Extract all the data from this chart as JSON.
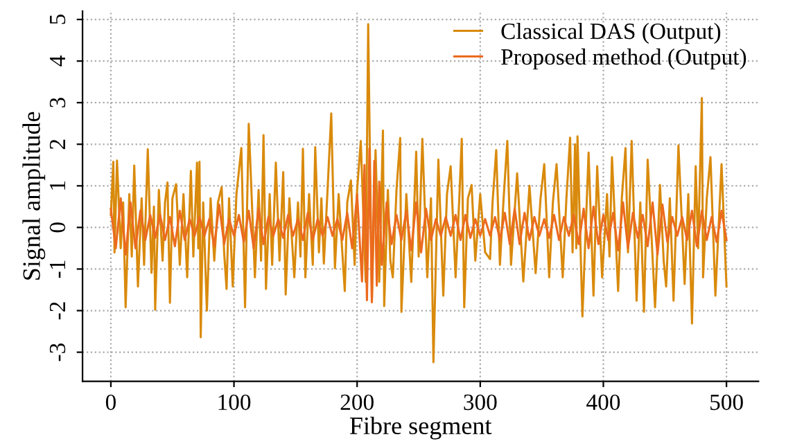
{
  "chart_data": {
    "type": "line",
    "xlabel": "Fibre segment",
    "ylabel": "Signal amplitude",
    "xlim": [
      -23,
      526
    ],
    "ylim": [
      -3.7,
      5.2
    ],
    "xticks": [
      0,
      100,
      200,
      300,
      400,
      500
    ],
    "yticks": [
      -3,
      -2,
      -1,
      0,
      1,
      2,
      3,
      4,
      5
    ],
    "grid": true,
    "legend": "top right",
    "line_style": "solid",
    "series": [
      {
        "name": "Classical DAS (Output)",
        "color": "#d98a0c",
        "x": [
          0,
          2,
          3,
          5,
          8,
          10,
          12,
          15,
          17,
          19,
          22,
          25,
          27,
          30,
          33,
          35,
          36,
          39,
          42,
          44,
          46,
          48,
          50,
          53,
          56,
          59,
          62,
          65,
          67,
          70,
          71,
          72,
          73,
          75,
          78,
          81,
          84,
          87,
          90,
          92,
          94,
          96,
          99,
          102,
          106,
          109,
          112,
          117,
          120,
          122,
          124,
          126,
          129,
          131,
          134,
          137,
          140,
          142,
          145,
          149,
          152,
          154,
          156,
          158,
          161,
          164,
          166,
          169,
          171,
          173,
          176,
          179,
          182,
          185,
          190,
          192,
          195,
          198,
          200,
          203,
          207,
          209,
          212,
          215,
          218,
          221,
          222,
          225,
          227,
          229,
          232,
          235,
          236,
          240,
          244,
          248,
          250,
          253,
          257,
          260,
          262,
          266,
          270,
          273,
          276,
          280,
          283,
          285,
          287,
          290,
          293,
          296,
          300,
          304,
          308,
          310,
          313,
          316,
          319,
          322,
          325,
          330,
          335,
          340,
          345,
          349,
          352,
          356,
          359,
          362,
          367,
          370,
          373,
          375,
          377,
          378,
          379,
          383,
          388,
          392,
          395,
          399,
          403,
          405,
          407,
          412,
          415,
          418,
          420,
          423,
          427,
          430,
          433,
          436,
          442,
          446,
          449,
          451,
          454,
          457,
          461,
          466,
          469,
          472,
          475,
          477,
          480,
          481,
          484,
          487,
          491,
          496,
          500
        ],
        "values": [
          0.3,
          1.58,
          -0.6,
          1.61,
          -0.5,
          0.6,
          -1.92,
          0.8,
          -0.7,
          1.49,
          -1.42,
          0.7,
          -0.9,
          1.88,
          -1.09,
          0.5,
          -1.98,
          0.9,
          -0.8,
          0.6,
          1.08,
          -1.81,
          0.7,
          1.04,
          -0.9,
          0.8,
          -1.2,
          1.36,
          -0.7,
          1.56,
          -0.5,
          1.58,
          -2.64,
          0.6,
          -2.0,
          0.7,
          -0.8,
          0.6,
          0.97,
          -0.6,
          -1.48,
          0.7,
          -1.42,
          0.8,
          1.91,
          -1.92,
          2.49,
          -1.2,
          0.9,
          -0.8,
          2.22,
          -1.48,
          0.8,
          -0.9,
          1.56,
          -0.8,
          1.33,
          -1.61,
          0.7,
          -1.2,
          0.6,
          -0.7,
          1.89,
          -1.2,
          0.8,
          -0.9,
          1.93,
          -0.6,
          0.7,
          -0.87,
          0.9,
          2.74,
          -0.98,
          0.8,
          -1.53,
          0.6,
          1.13,
          -0.9,
          0.9,
          2.08,
          -1.31,
          4.89,
          -1.76,
          1.86,
          -1.31,
          2.33,
          -1.89,
          0.9,
          -0.8,
          -1.2,
          0.9,
          2.15,
          -2.03,
          0.8,
          -1.31,
          1.82,
          -0.7,
          2.13,
          -1.2,
          0.7,
          -3.24,
          1.63,
          -1.64,
          0.8,
          1.47,
          -1.2,
          0.7,
          2.13,
          -1.92,
          0.7,
          1.02,
          -0.8,
          0.8,
          -0.6,
          -0.76,
          0.6,
          1.86,
          -0.9,
          0.7,
          2.08,
          -0.9,
          1.3,
          -1.3,
          1.0,
          -1.1,
          0.7,
          1.52,
          -1.2,
          0.6,
          1.52,
          -1.2,
          0.7,
          2.16,
          -0.6,
          2.0,
          -0.5,
          2.19,
          -2.14,
          1.8,
          -1.64,
          1.47,
          -1.2,
          0.8,
          -0.7,
          1.69,
          -1.53,
          0.7,
          1.91,
          -0.6,
          2.08,
          -1.76,
          0.6,
          -2.03,
          1.63,
          -1.92,
          1.02,
          -0.8,
          -1.42,
          0.7,
          -1.76,
          1.97,
          -1.36,
          0.8,
          -2.31,
          1.47,
          -0.5,
          3.11,
          -1.2,
          0.7,
          1.69,
          -1.64,
          1.52,
          -1.42
        ]
      },
      {
        "name": "Proposed method (Output)",
        "color": "#ec6a1e",
        "x": [
          0,
          4,
          8,
          12,
          16,
          20,
          24,
          28,
          32,
          36,
          40,
          44,
          48,
          52,
          56,
          60,
          64,
          68,
          72,
          76,
          80,
          84,
          88,
          92,
          96,
          100,
          104,
          108,
          112,
          116,
          120,
          124,
          128,
          132,
          136,
          140,
          144,
          148,
          152,
          156,
          160,
          164,
          168,
          172,
          176,
          180,
          184,
          188,
          192,
          196,
          200,
          204,
          206,
          208,
          210,
          212,
          214,
          216,
          218,
          220,
          224,
          228,
          232,
          236,
          240,
          244,
          248,
          252,
          256,
          260,
          264,
          268,
          272,
          276,
          280,
          284,
          288,
          292,
          296,
          300,
          304,
          308,
          312,
          316,
          320,
          324,
          328,
          332,
          336,
          340,
          344,
          348,
          352,
          356,
          360,
          364,
          368,
          372,
          376,
          380,
          384,
          388,
          392,
          396,
          400,
          404,
          408,
          412,
          416,
          420,
          424,
          428,
          432,
          436,
          440,
          444,
          448,
          452,
          456,
          460,
          464,
          468,
          472,
          476,
          480,
          484,
          488,
          492,
          496,
          500
        ],
        "values": [
          0.45,
          -0.5,
          0.7,
          -0.65,
          0.6,
          -0.5,
          0.4,
          -0.3,
          0.3,
          -0.25,
          0.3,
          -0.3,
          0.25,
          -0.45,
          0.4,
          -0.3,
          0.2,
          -0.2,
          0.25,
          -0.2,
          0.2,
          -0.45,
          0.55,
          -0.4,
          0.2,
          -0.2,
          0.3,
          -0.35,
          0.4,
          -0.5,
          0.45,
          -0.4,
          0.25,
          -0.2,
          0.2,
          -0.25,
          0.3,
          -0.2,
          0.2,
          -0.3,
          0.35,
          -0.3,
          0.2,
          -0.2,
          0.25,
          -0.2,
          0.2,
          -0.3,
          0.35,
          -0.5,
          0.8,
          -1.3,
          1.5,
          -1.75,
          1.9,
          -1.8,
          1.6,
          -1.4,
          1.1,
          -0.9,
          0.6,
          -0.4,
          0.3,
          -0.3,
          0.4,
          -0.55,
          0.6,
          -0.6,
          0.45,
          -0.3,
          0.2,
          -0.2,
          0.25,
          -0.2,
          0.3,
          -0.3,
          0.3,
          -0.25,
          0.2,
          -0.2,
          0.2,
          -0.2,
          0.25,
          -0.3,
          0.35,
          -0.4,
          0.45,
          -0.4,
          0.35,
          -0.3,
          0.25,
          -0.2,
          0.2,
          -0.25,
          0.3,
          -0.3,
          0.25,
          -0.2,
          0.3,
          -0.4,
          0.45,
          -0.5,
          0.5,
          -0.4,
          0.3,
          -0.3,
          0.35,
          -0.55,
          0.6,
          -0.5,
          0.35,
          -0.25,
          0.3,
          -0.45,
          0.6,
          -0.65,
          0.55,
          -0.35,
          0.25,
          -0.2,
          0.25,
          -0.3,
          0.4,
          -0.45,
          0.4,
          -0.3,
          0.25,
          -0.35,
          0.4,
          -0.3
        ]
      }
    ]
  }
}
